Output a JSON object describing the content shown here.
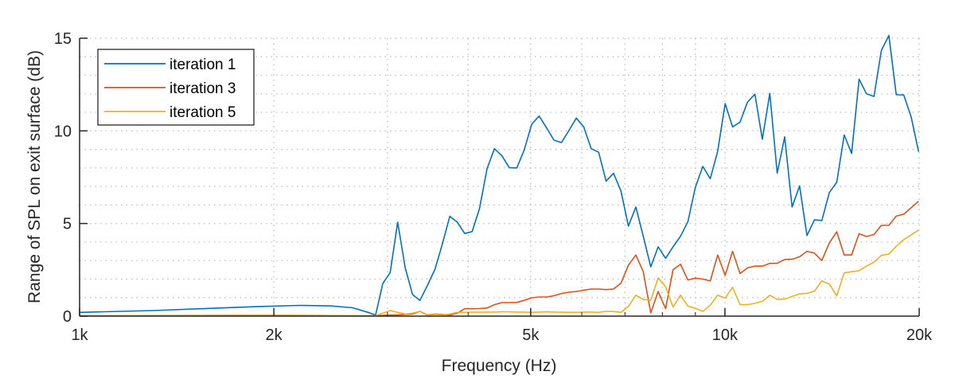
{
  "chart_data": {
    "type": "line",
    "xlabel": "Frequency (Hz)",
    "ylabel": "Range of SPL on exit surface (dB)",
    "xscale": "log",
    "xlim": [
      1000,
      20000
    ],
    "ylim": [
      0,
      15
    ],
    "xticks": [
      1000,
      2000,
      5000,
      10000,
      20000
    ],
    "xtick_labels": [
      "1k",
      "2k",
      "5k",
      "10k",
      "20k"
    ],
    "yticks": [
      0,
      5,
      10,
      15
    ],
    "ytick_labels": [
      "0",
      "5",
      "10",
      "15"
    ],
    "grid": "minor dotted",
    "legend_position": "top-left",
    "x": [
      2950,
      3029,
      3111,
      3195,
      3281,
      3369,
      3460,
      3553,
      3648,
      3747,
      3848,
      3951,
      4058,
      4167,
      4279,
      4394,
      4513,
      4634,
      4759,
      4887,
      5018,
      5153,
      5292,
      5434,
      5581,
      5731,
      5885,
      6043,
      6206,
      6373,
      6544,
      6720,
      6901,
      7087,
      7277,
      7473,
      7674,
      7881,
      8093,
      8311,
      8534,
      8764,
      9000,
      9242,
      9491,
      9746,
      10008,
      10277,
      10554,
      10838,
      11129,
      11429,
      11736,
      12052,
      12376,
      12709,
      13051,
      13402,
      13763,
      14133,
      14513,
      14904,
      15305,
      15717,
      16139,
      16574,
      17020,
      17478,
      17948,
      18431,
      18927,
      19436,
      19959
    ],
    "series": [
      {
        "name": "iteration 1",
        "color": "#0072BD",
        "low_freq": [
          [
            1000,
            0.2
          ],
          [
            1300,
            0.3
          ],
          [
            1600,
            0.42
          ],
          [
            1900,
            0.52
          ],
          [
            2200,
            0.58
          ],
          [
            2450,
            0.55
          ],
          [
            2650,
            0.45
          ],
          [
            2800,
            0.2
          ],
          [
            2875,
            0.05
          ]
        ],
        "values": [
          1.76,
          2.35,
          5.07,
          2.62,
          1.16,
          0.85,
          1.66,
          2.52,
          3.88,
          5.39,
          5.07,
          4.46,
          4.56,
          5.82,
          7.96,
          9.04,
          8.65,
          8.01,
          8.0,
          8.97,
          10.36,
          10.8,
          10.16,
          9.5,
          9.37,
          10.01,
          10.69,
          10.21,
          9.04,
          8.85,
          7.28,
          7.71,
          6.75,
          4.86,
          5.89,
          4.31,
          2.66,
          3.74,
          3.12,
          3.74,
          4.31,
          5.1,
          6.96,
          8.08,
          7.42,
          8.9,
          11.47,
          10.21,
          10.47,
          11.55,
          11.98,
          9.54,
          12.02,
          7.72,
          9.68,
          5.89,
          7.03,
          4.35,
          5.2,
          5.16,
          6.67,
          7.22,
          9.78,
          8.78,
          12.79,
          12.0,
          11.86,
          14.34,
          15.15,
          11.95,
          11.94,
          10.76,
          8.87
        ]
      },
      {
        "name": "iteration 3",
        "color": "#D95319",
        "low_freq": [
          [
            1000,
            0.02
          ],
          [
            2000,
            0.05
          ],
          [
            2875,
            0.02
          ]
        ],
        "values": [
          0.04,
          0.06,
          0.06,
          0.09,
          0.11,
          0.26,
          0.06,
          0.11,
          0.09,
          0.06,
          0.16,
          0.4,
          0.4,
          0.41,
          0.44,
          0.62,
          0.73,
          0.73,
          0.74,
          0.85,
          0.99,
          1.03,
          1.03,
          1.1,
          1.22,
          1.29,
          1.33,
          1.4,
          1.46,
          1.46,
          1.43,
          1.46,
          1.78,
          2.74,
          3.3,
          2.4,
          0.17,
          1.33,
          0.4,
          2.5,
          2.8,
          1.95,
          2.05,
          2.0,
          1.9,
          3.3,
          2.2,
          3.5,
          2.3,
          2.6,
          2.7,
          2.7,
          2.85,
          2.85,
          3.06,
          3.07,
          3.2,
          3.5,
          3.4,
          3.0,
          3.95,
          4.55,
          3.3,
          3.3,
          4.45,
          4.3,
          4.4,
          4.9,
          4.9,
          5.4,
          5.5,
          5.85,
          6.2
        ]
      },
      {
        "name": "iteration 5",
        "color": "#EDB120",
        "low_freq": [
          [
            1000,
            0.02
          ],
          [
            2000,
            0.04
          ],
          [
            2875,
            0.02
          ]
        ],
        "values": [
          0.16,
          0.3,
          0.2,
          0.11,
          0.16,
          0.26,
          0.04,
          0.09,
          0.06,
          0.11,
          0.2,
          0.2,
          0.21,
          0.21,
          0.22,
          0.22,
          0.23,
          0.23,
          0.22,
          0.22,
          0.2,
          0.22,
          0.23,
          0.22,
          0.21,
          0.2,
          0.2,
          0.22,
          0.22,
          0.2,
          0.26,
          0.25,
          0.2,
          0.52,
          1.13,
          0.9,
          0.85,
          2.06,
          1.59,
          0.49,
          1.13,
          0.54,
          0.42,
          0.26,
          0.59,
          1.13,
          0.97,
          1.56,
          0.62,
          0.62,
          0.69,
          0.8,
          1.13,
          0.9,
          0.92,
          1.06,
          1.2,
          1.23,
          1.35,
          1.9,
          1.73,
          1.09,
          2.33,
          2.4,
          2.45,
          2.7,
          2.91,
          3.28,
          3.35,
          3.77,
          4.13,
          4.38,
          4.64
        ]
      }
    ]
  }
}
